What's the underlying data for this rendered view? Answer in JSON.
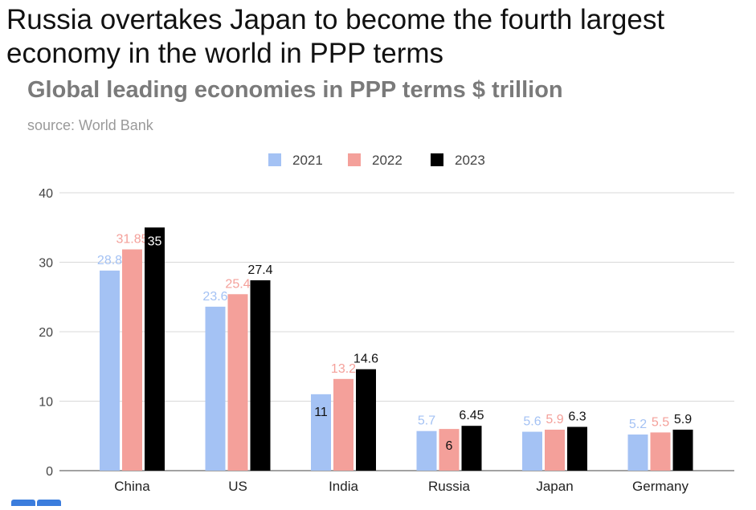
{
  "headline": "Russia overtakes Japan to become the fourth largest economy in the world in PPP terms",
  "chart_data": {
    "type": "bar",
    "title": "Global leading economies in PPP terms $ trillion",
    "subtitle": "source: World Bank",
    "categories": [
      "China",
      "US",
      "India",
      "Russia",
      "Japan",
      "Germany"
    ],
    "series": [
      {
        "name": "2021",
        "color": "#a4c2f4",
        "values": [
          28.8,
          23.6,
          11,
          5.7,
          5.6,
          5.2
        ],
        "labels": [
          "28.8",
          "23.6",
          "11",
          "5.7",
          "5.6",
          "5.2"
        ]
      },
      {
        "name": "2022",
        "color": "#f4a09a",
        "values": [
          31.85,
          25.4,
          13.2,
          6,
          5.9,
          5.5
        ],
        "labels": [
          "31.85",
          "25.4",
          "13.2",
          "6",
          "5.9",
          "5.5"
        ]
      },
      {
        "name": "2023",
        "color": "#000000",
        "values": [
          35,
          27.4,
          14.6,
          6.45,
          6.3,
          5.9
        ],
        "labels": [
          "35",
          "27.4",
          "14.6",
          "6.45",
          "6.3",
          "5.9"
        ]
      }
    ],
    "ylim": [
      0,
      40
    ],
    "yticks": [
      "0",
      "10",
      "20",
      "30",
      "40"
    ],
    "grid": true,
    "legend_position": "top-center",
    "label_colors": [
      "#a4c2f4",
      "#f4a09a",
      "#111111"
    ]
  }
}
